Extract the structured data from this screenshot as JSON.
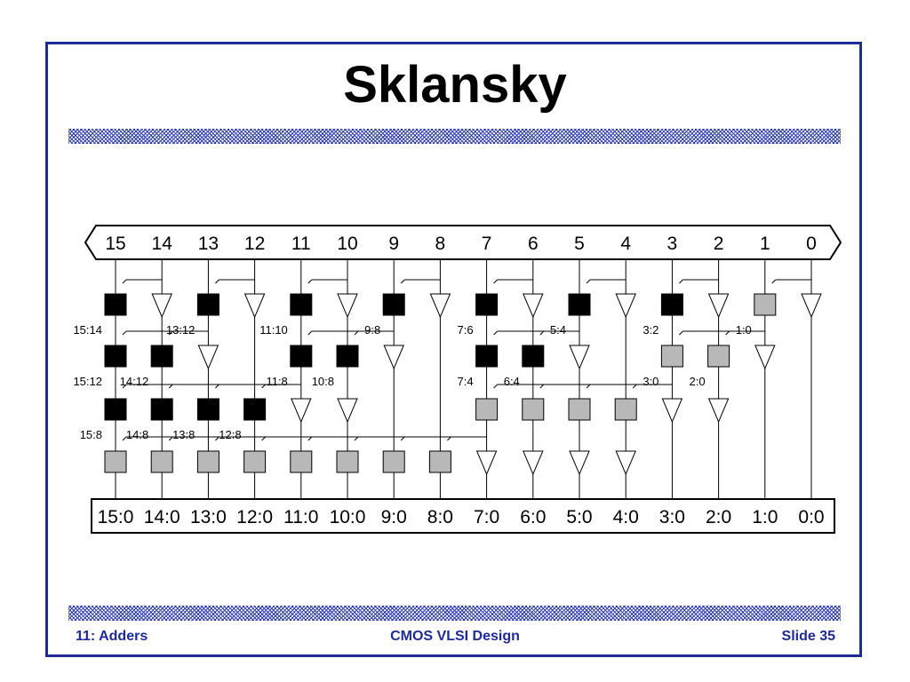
{
  "slide": {
    "title": "Sklansky",
    "footer_left": "11: Adders",
    "footer_center": "CMOS VLSI Design",
    "footer_right": "Slide 35"
  },
  "colors": {
    "frame": "#1e2a96",
    "footer_text": "#1e2a96",
    "black_cell": "#000000",
    "gray_cell": "#b8b8b8"
  },
  "diagram": {
    "top_labels": [
      "15",
      "14",
      "13",
      "12",
      "11",
      "10",
      "9",
      "8",
      "7",
      "6",
      "5",
      "4",
      "3",
      "2",
      "1",
      "0"
    ],
    "bottom_labels": [
      "15:0",
      "14:0",
      "13:0",
      "12:0",
      "11:0",
      "10:0",
      "9:0",
      "8:0",
      "7:0",
      "6:0",
      "5:0",
      "4:0",
      "3:0",
      "2:0",
      "1:0",
      "0:0"
    ],
    "levels": [
      {
        "cells": [
          {
            "col": 15,
            "kind": "black",
            "src": 14,
            "label": "15:14"
          },
          {
            "col": 14,
            "kind": "buffer"
          },
          {
            "col": 13,
            "kind": "black",
            "src": 12,
            "label": "13:12"
          },
          {
            "col": 12,
            "kind": "buffer"
          },
          {
            "col": 11,
            "kind": "black",
            "src": 10,
            "label": "11:10"
          },
          {
            "col": 10,
            "kind": "buffer"
          },
          {
            "col": 9,
            "kind": "black",
            "src": 8,
            "label": "9:8"
          },
          {
            "col": 8,
            "kind": "buffer"
          },
          {
            "col": 7,
            "kind": "black",
            "src": 6,
            "label": "7:6"
          },
          {
            "col": 6,
            "kind": "buffer"
          },
          {
            "col": 5,
            "kind": "black",
            "src": 4,
            "label": "5:4"
          },
          {
            "col": 4,
            "kind": "buffer"
          },
          {
            "col": 3,
            "kind": "black",
            "src": 2,
            "label": "3:2"
          },
          {
            "col": 2,
            "kind": "buffer"
          },
          {
            "col": 1,
            "kind": "gray",
            "src": 0,
            "label": "1:0"
          },
          {
            "col": 0,
            "kind": "buffer"
          }
        ]
      },
      {
        "cells": [
          {
            "col": 15,
            "kind": "black",
            "src": 13,
            "label": "15:12"
          },
          {
            "col": 14,
            "kind": "black",
            "src": 13,
            "label": "14:12"
          },
          {
            "col": 13,
            "kind": "buffer"
          },
          {
            "col": 11,
            "kind": "black",
            "src": 9,
            "label": "11:8"
          },
          {
            "col": 10,
            "kind": "black",
            "src": 9,
            "label": "10:8"
          },
          {
            "col": 9,
            "kind": "buffer"
          },
          {
            "col": 7,
            "kind": "black",
            "src": 5,
            "label": "7:4"
          },
          {
            "col": 6,
            "kind": "black",
            "src": 5,
            "label": "6:4"
          },
          {
            "col": 5,
            "kind": "buffer"
          },
          {
            "col": 3,
            "kind": "gray",
            "src": 1,
            "label": "3:0"
          },
          {
            "col": 2,
            "kind": "gray",
            "src": 1,
            "label": "2:0"
          },
          {
            "col": 1,
            "kind": "buffer"
          }
        ]
      },
      {
        "cells": [
          {
            "col": 15,
            "kind": "black",
            "src": 11,
            "label": "15:8"
          },
          {
            "col": 14,
            "kind": "black",
            "src": 11,
            "label": "14:8"
          },
          {
            "col": 13,
            "kind": "black",
            "src": 11,
            "label": "13:8"
          },
          {
            "col": 12,
            "kind": "black",
            "src": 11,
            "label": "12:8"
          },
          {
            "col": 11,
            "kind": "buffer"
          },
          {
            "col": 10,
            "kind": "buffer"
          },
          {
            "col": 7,
            "kind": "gray",
            "src": 3
          },
          {
            "col": 6,
            "kind": "gray",
            "src": 3
          },
          {
            "col": 5,
            "kind": "gray",
            "src": 3
          },
          {
            "col": 4,
            "kind": "gray",
            "src": 3
          },
          {
            "col": 3,
            "kind": "buffer"
          },
          {
            "col": 2,
            "kind": "buffer"
          }
        ]
      },
      {
        "cells": [
          {
            "col": 15,
            "kind": "gray",
            "src": 7
          },
          {
            "col": 14,
            "kind": "gray",
            "src": 7
          },
          {
            "col": 13,
            "kind": "gray",
            "src": 7
          },
          {
            "col": 12,
            "kind": "gray",
            "src": 7
          },
          {
            "col": 11,
            "kind": "gray",
            "src": 7
          },
          {
            "col": 10,
            "kind": "gray",
            "src": 7
          },
          {
            "col": 9,
            "kind": "gray",
            "src": 7
          },
          {
            "col": 8,
            "kind": "gray",
            "src": 7
          },
          {
            "col": 7,
            "kind": "buffer"
          },
          {
            "col": 6,
            "kind": "buffer"
          },
          {
            "col": 5,
            "kind": "buffer"
          },
          {
            "col": 4,
            "kind": "buffer"
          }
        ]
      }
    ]
  }
}
